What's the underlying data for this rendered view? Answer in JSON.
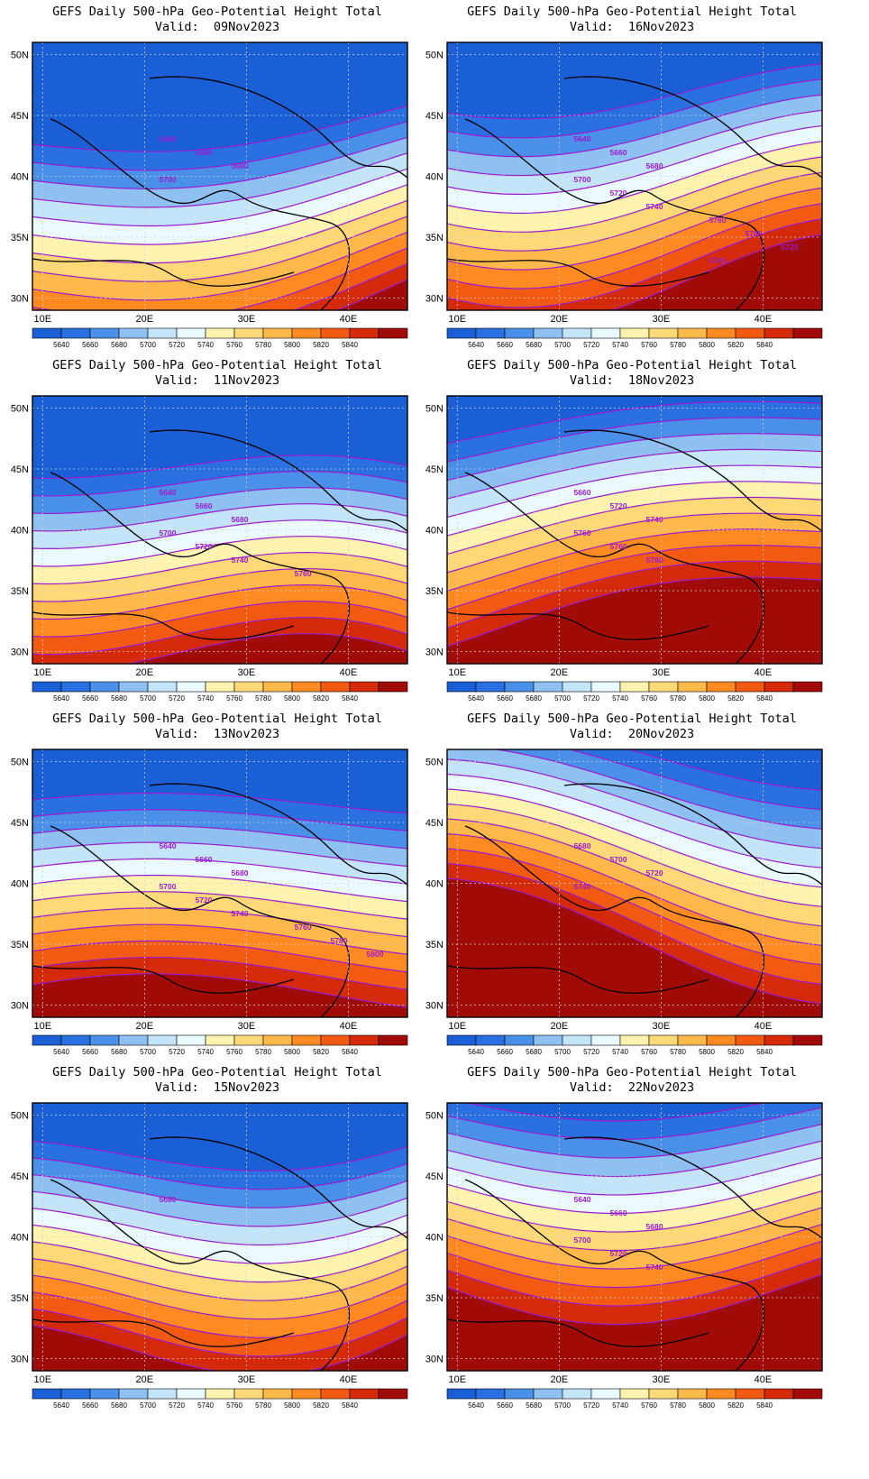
{
  "figure_title": "GEFS Daily 500-hPa Geo-Potential Height Total",
  "valid_prefix": "Valid:",
  "lat_labels": [
    "50N",
    "45N",
    "40N",
    "35N",
    "30N"
  ],
  "lon_labels": [
    "10E",
    "20E",
    "30E",
    "40E"
  ],
  "colorbar": {
    "levels": [
      "5640",
      "5660",
      "5680",
      "5700",
      "5720",
      "5740",
      "5760",
      "5780",
      "5800",
      "5820",
      "5840"
    ],
    "colors": [
      "#1a5fd6",
      "#2a70e0",
      "#4a8fe8",
      "#8fc0f2",
      "#c4e4fa",
      "#eafaff",
      "#fff3b0",
      "#ffd978",
      "#ffb84a",
      "#ff8a22",
      "#f25a12",
      "#d42a0a",
      "#a00c05"
    ]
  },
  "panels": [
    {
      "valid": "09Nov2023",
      "shift": 0.6,
      "labels": [
        "5640",
        "5660",
        "5680",
        "5700"
      ]
    },
    {
      "valid": "16Nov2023",
      "shift": -0.4,
      "labels": [
        "5640",
        "5660",
        "5680",
        "5700",
        "5720",
        "5740",
        "5760",
        "5780",
        "5720",
        "5740"
      ]
    },
    {
      "valid": "11Nov2023",
      "shift": 0.3,
      "labels": [
        "5640",
        "5660",
        "5680",
        "5700",
        "5720",
        "5740",
        "5760"
      ]
    },
    {
      "valid": "18Nov2023",
      "shift": -1.0,
      "labels": [
        "5660",
        "5720",
        "5740",
        "5760",
        "5760",
        "5780"
      ]
    },
    {
      "valid": "13Nov2023",
      "shift": -0.2,
      "labels": [
        "5640",
        "5660",
        "5680",
        "5700",
        "5720",
        "5740",
        "5760",
        "5780",
        "5800"
      ]
    },
    {
      "valid": "20Nov2023",
      "shift": -1.6,
      "labels": [
        "5680",
        "5700",
        "5720",
        "5740"
      ]
    },
    {
      "valid": "15Nov2023",
      "shift": -0.5,
      "labels": [
        "5680"
      ]
    },
    {
      "valid": "22Nov2023",
      "shift": -1.8,
      "labels": [
        "5640",
        "5660",
        "5680",
        "5700",
        "5720",
        "5740"
      ]
    }
  ]
}
